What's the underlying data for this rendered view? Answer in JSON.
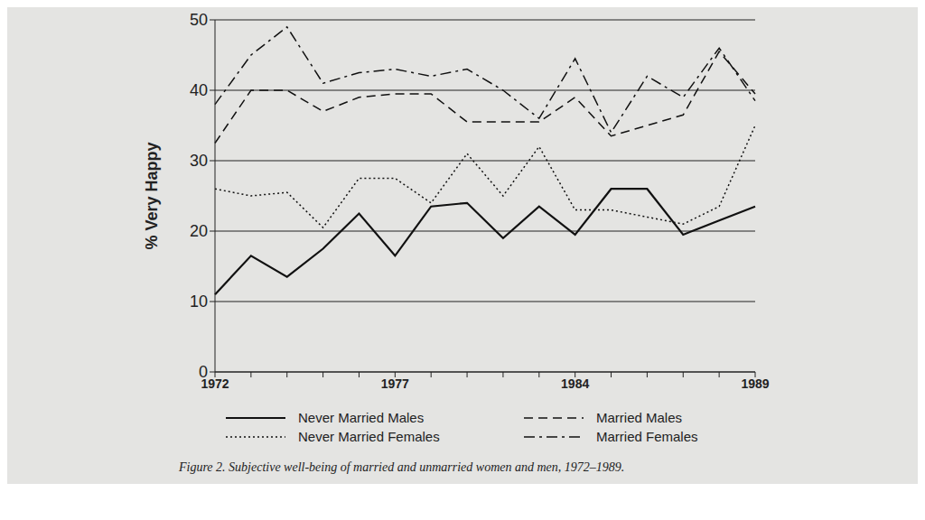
{
  "chart_data": {
    "type": "line",
    "title": "Figure 2. Subjective well-being of married and unmarried women and men, 1972–1989.",
    "y_label": "% Very Happy",
    "categories": [
      "1972",
      null,
      null,
      null,
      null,
      "1977",
      null,
      null,
      null,
      null,
      "1984",
      null,
      null,
      null,
      null,
      "1989"
    ],
    "series": [
      {
        "name": "Never Married Males",
        "color": "#111111",
        "line_style": "solid",
        "values": [
          11,
          16.5,
          13.5,
          17.5,
          22.5,
          16.5,
          23.5,
          24,
          19,
          23.5,
          19.5,
          26,
          26,
          19.5,
          21.5,
          23.5
        ]
      },
      {
        "name": "Never Married Females",
        "color": "#111111",
        "line_style": "dotted",
        "values": [
          26,
          25,
          25.5,
          20.5,
          27.5,
          27.5,
          24,
          31,
          25,
          32,
          23,
          23,
          22,
          21,
          23.5,
          35
        ]
      },
      {
        "name": "Married Males",
        "color": "#111111",
        "line_style": "dashed",
        "values": [
          32.5,
          40,
          40,
          37,
          39,
          39.5,
          39.5,
          35.5,
          35.5,
          35.5,
          39,
          33.5,
          35,
          36.5,
          45.5,
          39.5
        ]
      },
      {
        "name": "Married Females",
        "color": "#111111",
        "line_style": "dashdot",
        "values": [
          38,
          45,
          49,
          41,
          42.5,
          43,
          42,
          43,
          40,
          36,
          44.5,
          34,
          42,
          39,
          46,
          38.5
        ]
      }
    ],
    "ylim": [
      0,
      50
    ],
    "yticks": [
      0,
      10,
      20,
      30,
      40,
      50
    ],
    "grid": true,
    "legend": "bottom"
  }
}
